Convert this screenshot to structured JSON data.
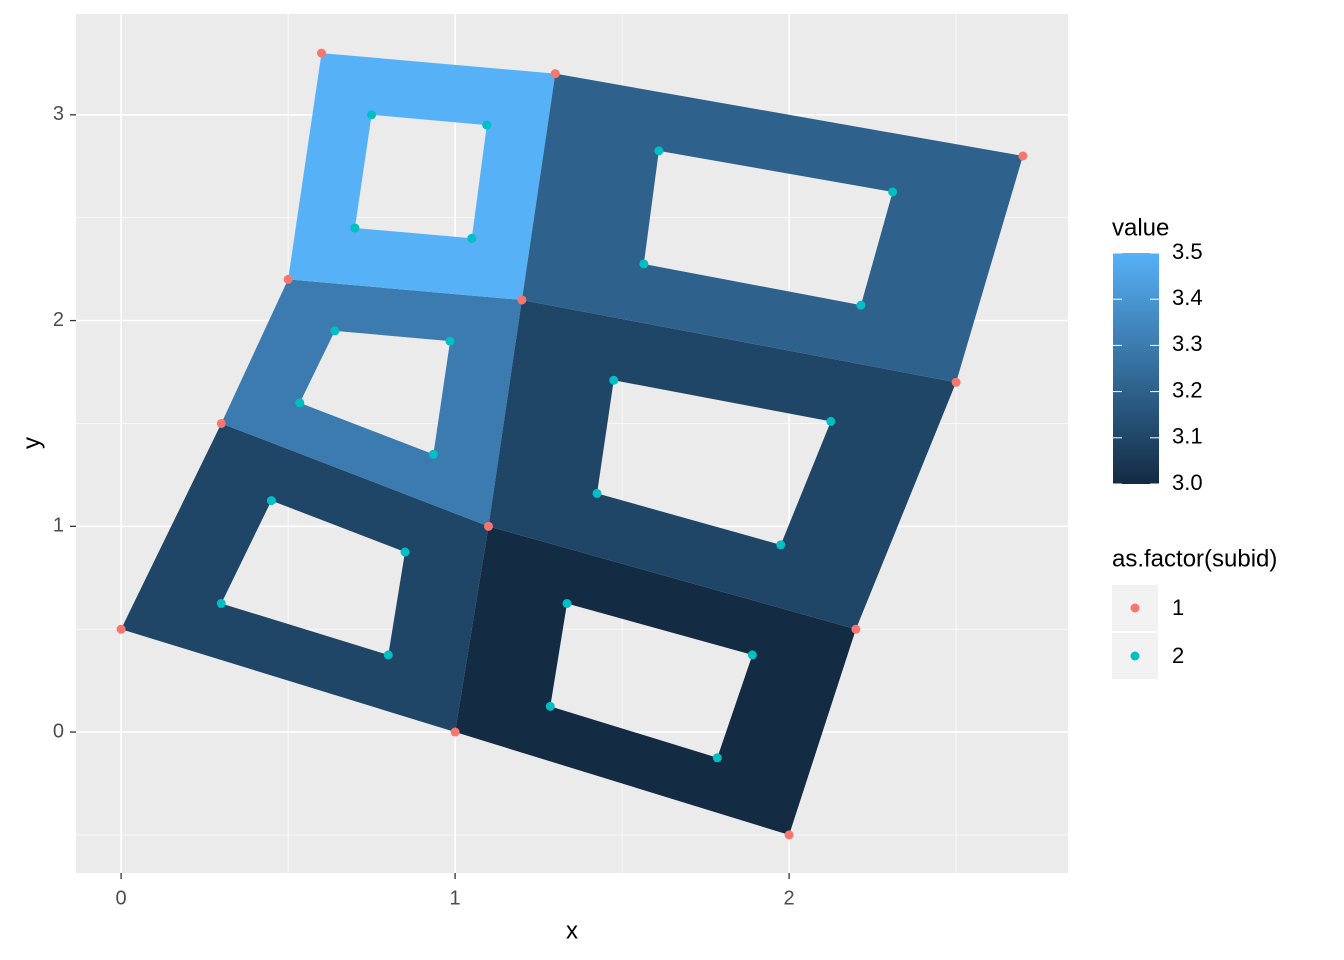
{
  "chart_data": {
    "type": "polygon",
    "x_label": "x",
    "y_label": "y",
    "xlim": [
      -0.135,
      2.835
    ],
    "ylim": [
      -0.685,
      3.49
    ],
    "xticks": [
      0,
      1,
      2
    ],
    "yticks": [
      0,
      1,
      2,
      3
    ],
    "x_minor_ticks": [
      0.5,
      1.5,
      2.5
    ],
    "y_minor_ticks": [
      -0.5,
      0.5,
      1.5,
      2.5
    ],
    "grid": true,
    "polygons": [
      {
        "value": 3.1,
        "outer": {
          "x": [
            0,
            1,
            1.1,
            0.3
          ],
          "y": [
            0.5,
            0,
            1,
            1.5
          ]
        },
        "hole": {
          "x": [
            0.3,
            0.8,
            0.85,
            0.45
          ],
          "y": [
            0.625,
            0.375,
            0.875,
            1.125
          ]
        }
      },
      {
        "value": 3.0,
        "outer": {
          "x": [
            1,
            2,
            2.2,
            1.1
          ],
          "y": [
            0,
            -0.5,
            0.5,
            1
          ]
        },
        "hole": {
          "x": [
            1.285,
            1.785,
            1.89,
            1.335
          ],
          "y": [
            0.125,
            -0.125,
            0.375,
            0.625
          ]
        }
      },
      {
        "value": 3.3,
        "outer": {
          "x": [
            0.3,
            1.1,
            1.2,
            0.5
          ],
          "y": [
            1.5,
            1,
            2.1,
            2.2
          ]
        },
        "hole": {
          "x": [
            0.535,
            0.935,
            0.985,
            0.64
          ],
          "y": [
            1.6,
            1.35,
            1.9,
            1.95
          ]
        }
      },
      {
        "value": 3.1,
        "outer": {
          "x": [
            1.1,
            2.2,
            2.5,
            1.2
          ],
          "y": [
            1,
            0.5,
            1.7,
            2.1
          ]
        },
        "hole": {
          "x": [
            1.425,
            1.975,
            2.125,
            1.475
          ],
          "y": [
            1.16,
            0.91,
            1.51,
            1.71
          ]
        }
      },
      {
        "value": 3.5,
        "outer": {
          "x": [
            0.5,
            1.2,
            1.3,
            0.6
          ],
          "y": [
            2.2,
            2.1,
            3.2,
            3.3
          ]
        },
        "hole": {
          "x": [
            0.7,
            1.05,
            1.095,
            0.75
          ],
          "y": [
            2.45,
            2.4,
            2.95,
            3.0
          ]
        }
      },
      {
        "value": 3.2,
        "outer": {
          "x": [
            1.2,
            2.5,
            2.7,
            1.3
          ],
          "y": [
            2.1,
            1.7,
            2.8,
            3.2
          ]
        },
        "hole": {
          "x": [
            1.565,
            2.215,
            2.31,
            1.61
          ],
          "y": [
            2.275,
            2.075,
            2.625,
            2.825
          ]
        }
      }
    ],
    "fill_scale": {
      "title": "value",
      "lim": [
        3,
        3.5
      ],
      "low": "#132B43",
      "high": "#56B1F7",
      "ticks": [
        {
          "value": 3,
          "label": "3.0"
        },
        3.1,
        3.2,
        3.3,
        3.4,
        3.5
      ]
    },
    "legend_title": "as.factor(subid)",
    "series": [
      {
        "name": "1",
        "color": "#F8766D",
        "x": [
          0,
          1,
          2,
          0.3,
          1.1,
          2.2,
          0.5,
          1.2,
          2.5,
          0.6,
          1.3,
          2.7
        ],
        "y": [
          0.5,
          0,
          -0.5,
          1.5,
          1,
          0.5,
          2.2,
          2.1,
          1.7,
          3.3,
          3.2,
          2.8
        ]
      },
      {
        "name": "2",
        "color": "#00BFC4",
        "x": [
          0.3,
          0.8,
          0.85,
          0.45,
          1.285,
          1.785,
          1.89,
          1.335,
          0.535,
          0.935,
          0.985,
          0.64,
          1.425,
          1.975,
          2.125,
          1.475,
          0.7,
          1.05,
          1.095,
          0.75,
          1.565,
          2.215,
          2.31,
          1.61
        ],
        "y": [
          0.625,
          0.375,
          0.875,
          1.125,
          0.125,
          -0.125,
          0.375,
          0.625,
          1.6,
          1.35,
          1.9,
          1.95,
          1.16,
          0.91,
          1.51,
          1.71,
          2.45,
          2.4,
          2.95,
          3.0,
          2.275,
          2.075,
          2.625,
          2.825
        ]
      }
    ]
  }
}
